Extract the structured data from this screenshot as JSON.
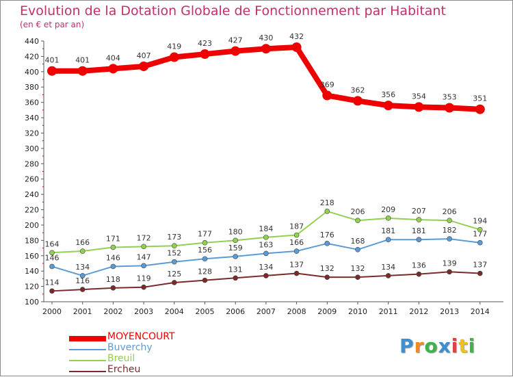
{
  "header": {
    "title": "Evolution de la Dotation Globale de Fonctionnement par Habitant",
    "subtitle": "(en € et par an)"
  },
  "logo": {
    "text": "Proxiti",
    "colors": [
      "#3b8fd4",
      "#f08a24",
      "#3bb54a",
      "#3b8fd4",
      "#e04040",
      "#f0c020",
      "#3bb54a"
    ]
  },
  "chart_data": {
    "type": "line",
    "title": "Evolution de la Dotation Globale de Fonctionnement par Habitant",
    "subtitle": "(en € et par an)",
    "x": [
      "2000",
      "2001",
      "2002",
      "2003",
      "2004",
      "2005",
      "2006",
      "2007",
      "2008",
      "2009",
      "2010",
      "2011",
      "2012",
      "2013",
      "2014"
    ],
    "ylim": [
      100,
      440
    ],
    "yticks": [
      100,
      120,
      140,
      160,
      180,
      200,
      220,
      240,
      260,
      280,
      300,
      320,
      340,
      360,
      380,
      400,
      420,
      440
    ],
    "grid": false,
    "legend": "bottom-left",
    "series": [
      {
        "name": "MOYENCOURT",
        "color": "#ee0000",
        "values": [
          401,
          401,
          404,
          407,
          419,
          423,
          427,
          430,
          432,
          369,
          362,
          356,
          354,
          353,
          351
        ]
      },
      {
        "name": "Buverchy",
        "color": "#5b9bd5",
        "values": [
          146,
          134,
          146,
          147,
          152,
          156,
          159,
          163,
          166,
          176,
          168,
          181,
          181,
          182,
          177
        ]
      },
      {
        "name": "Breuil",
        "color": "#92d050",
        "values": [
          164,
          166,
          171,
          172,
          173,
          177,
          180,
          184,
          187,
          218,
          206,
          209,
          207,
          206,
          194
        ]
      },
      {
        "name": "Ercheu",
        "color": "#7b2a2a",
        "values": [
          114,
          116,
          118,
          119,
          125,
          128,
          131,
          134,
          137,
          132,
          132,
          134,
          136,
          139,
          137
        ]
      }
    ]
  }
}
